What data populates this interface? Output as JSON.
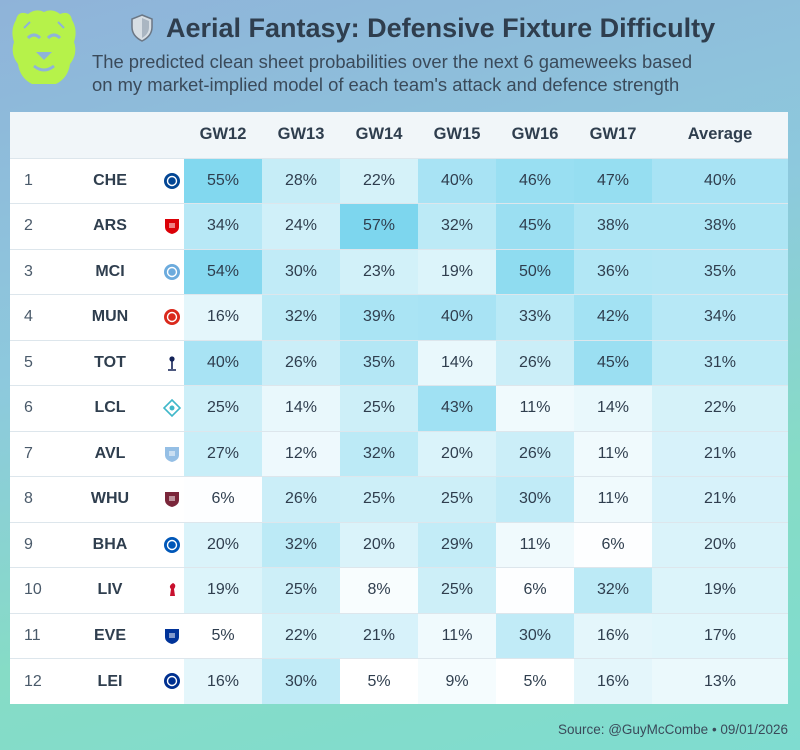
{
  "header": {
    "title": "Aerial Fantasy: Defensive Fixture Difficulty",
    "subtitle_line1": "The predicted clean sheet probabilities over the next 6 gameweeks based",
    "subtitle_line2": "on my market-implied model of each team's attack and defence strength"
  },
  "footer": {
    "source": "Source: @GuyMcCombe • 09/01/2026"
  },
  "colors": {
    "heat_high": "#7dd6ee",
    "heat_low": "#ffffff",
    "text": "#2f3e4e",
    "logo_green": "#b6f24a"
  },
  "chart_data": {
    "type": "table",
    "columns": [
      "GW12",
      "GW13",
      "GW14",
      "GW15",
      "GW16",
      "GW17",
      "Average"
    ],
    "unit": "%",
    "rows": [
      {
        "rank": "1",
        "team": "CHE",
        "crest_icon": "chelsea-crest-icon",
        "crest_color": "#034694",
        "values": [
          55,
          28,
          22,
          40,
          46,
          47
        ],
        "average": 40
      },
      {
        "rank": "2",
        "team": "ARS",
        "crest_icon": "arsenal-crest-icon",
        "crest_color": "#db0007",
        "values": [
          34,
          24,
          57,
          32,
          45,
          38
        ],
        "average": 38
      },
      {
        "rank": "3",
        "team": "MCI",
        "crest_icon": "man-city-crest-icon",
        "crest_color": "#6cabdd",
        "values": [
          54,
          30,
          23,
          19,
          50,
          36
        ],
        "average": 35
      },
      {
        "rank": "4",
        "team": "MUN",
        "crest_icon": "man-utd-crest-icon",
        "crest_color": "#da291c",
        "values": [
          16,
          32,
          39,
          40,
          33,
          42
        ],
        "average": 34
      },
      {
        "rank": "5",
        "team": "TOT",
        "crest_icon": "tottenham-crest-icon",
        "crest_color": "#132257",
        "values": [
          40,
          26,
          35,
          14,
          26,
          45
        ],
        "average": 31
      },
      {
        "rank": "6",
        "team": "LCL",
        "crest_icon": "lcl-crest-icon",
        "crest_color": "#3fb7c9",
        "values": [
          25,
          14,
          25,
          43,
          11,
          14
        ],
        "average": 22
      },
      {
        "rank": "7",
        "team": "AVL",
        "crest_icon": "aston-villa-crest-icon",
        "crest_color": "#95bfe5",
        "values": [
          27,
          12,
          32,
          20,
          26,
          11
        ],
        "average": 21
      },
      {
        "rank": "8",
        "team": "WHU",
        "crest_icon": "west-ham-crest-icon",
        "crest_color": "#7a263a",
        "values": [
          6,
          26,
          25,
          25,
          30,
          11
        ],
        "average": 21
      },
      {
        "rank": "9",
        "team": "BHA",
        "crest_icon": "brighton-crest-icon",
        "crest_color": "#0057b8",
        "values": [
          20,
          32,
          20,
          29,
          11,
          6
        ],
        "average": 20
      },
      {
        "rank": "10",
        "team": "LIV",
        "crest_icon": "liverpool-crest-icon",
        "crest_color": "#c8102e",
        "values": [
          19,
          25,
          8,
          25,
          6,
          32
        ],
        "average": 19
      },
      {
        "rank": "11",
        "team": "EVE",
        "crest_icon": "everton-crest-icon",
        "crest_color": "#003399",
        "values": [
          5,
          22,
          21,
          11,
          30,
          16
        ],
        "average": 17
      },
      {
        "rank": "12",
        "team": "LEI",
        "crest_icon": "leicester-crest-icon",
        "crest_color": "#003090",
        "values": [
          16,
          30,
          5,
          9,
          5,
          16
        ],
        "average": 13
      }
    ]
  }
}
